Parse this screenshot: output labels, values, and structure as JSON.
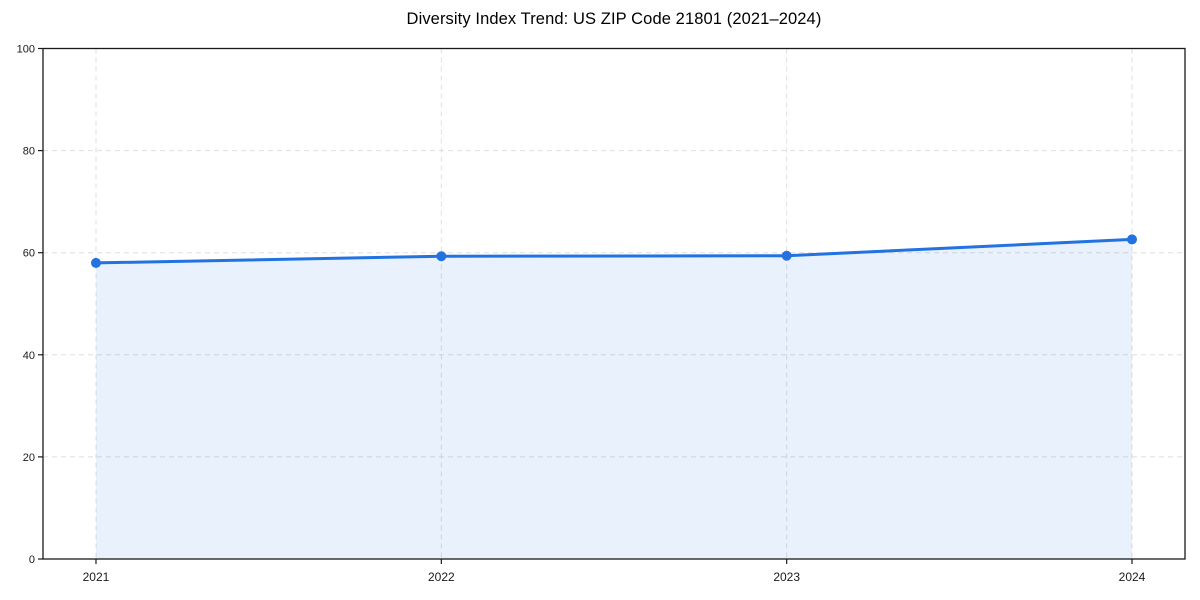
{
  "page": {
    "background": "#ffffff"
  },
  "chart_data": {
    "type": "line",
    "title": "Diversity Index Trend: US ZIP Code 21801 (2021–2024)",
    "categories": [
      "2021",
      "2022",
      "2023",
      "2024"
    ],
    "series": [
      {
        "name": "Diversity Index",
        "values": [
          58.0,
          59.3,
          59.4,
          62.6
        ]
      }
    ],
    "xlabel": "",
    "ylabel": "",
    "ylim": [
      0,
      100
    ],
    "yticks": [
      0,
      20,
      40,
      60,
      80,
      100
    ],
    "grid": "dashed-both-axes",
    "legend": "none",
    "area_fill": true,
    "marker": "circle",
    "line_width": 3,
    "marker_radius": 5,
    "colors": {
      "line": "#2272e2",
      "marker": "#2272e2",
      "fill": "rgba(34,114,226,0.10)",
      "grid": "#dedede",
      "axis": "#1a1a1a",
      "tick_label": "#1a1a1a",
      "title": "#000000",
      "background": "#ffffff"
    }
  }
}
